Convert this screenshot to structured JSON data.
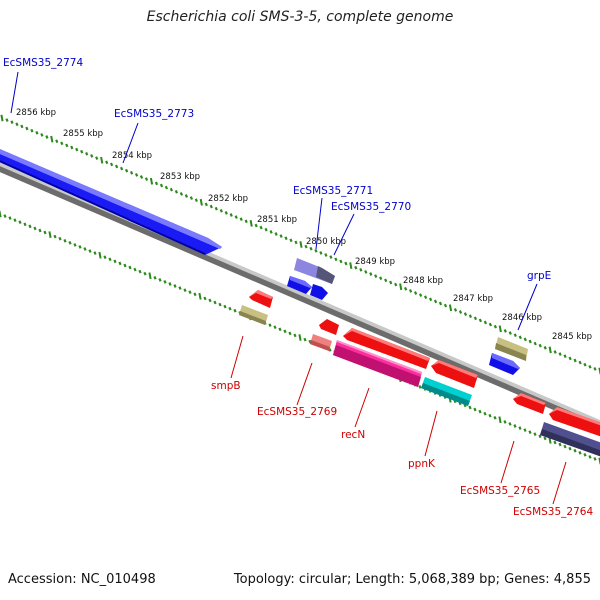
{
  "title": "Escherichia coli SMS-3-5, complete genome",
  "footer": {
    "accession": "Accession: NC_010498",
    "summary": "Topology: circular; Length: 5,068,389 bp; Genes: 4,855"
  },
  "scale_labels": [
    "2856 kbp",
    "2855 kbp",
    "2854 kbp",
    "2853 kbp",
    "2852 kbp",
    "2851 kbp",
    "2850 kbp",
    "2849 kbp",
    "2848 kbp",
    "2847 kbp",
    "2846 kbp",
    "2845 kbp"
  ],
  "genes_forward": [
    "EcSMS35_2774",
    "EcSMS35_2773",
    "EcSMS35_2771",
    "EcSMS35_2770",
    "grpE"
  ],
  "genes_reverse": [
    "smpB",
    "EcSMS35_2769",
    "recN",
    "ppnK",
    "EcSMS35_2765",
    "EcSMS35_2764"
  ],
  "colors": {
    "forward_gene": "#1010ee",
    "reverse_gene": "#ee1010",
    "forward_label": "#0000cc",
    "reverse_label": "#cc0000",
    "tick": "#2a8a1a",
    "backbone": "#8a8a8a"
  }
}
